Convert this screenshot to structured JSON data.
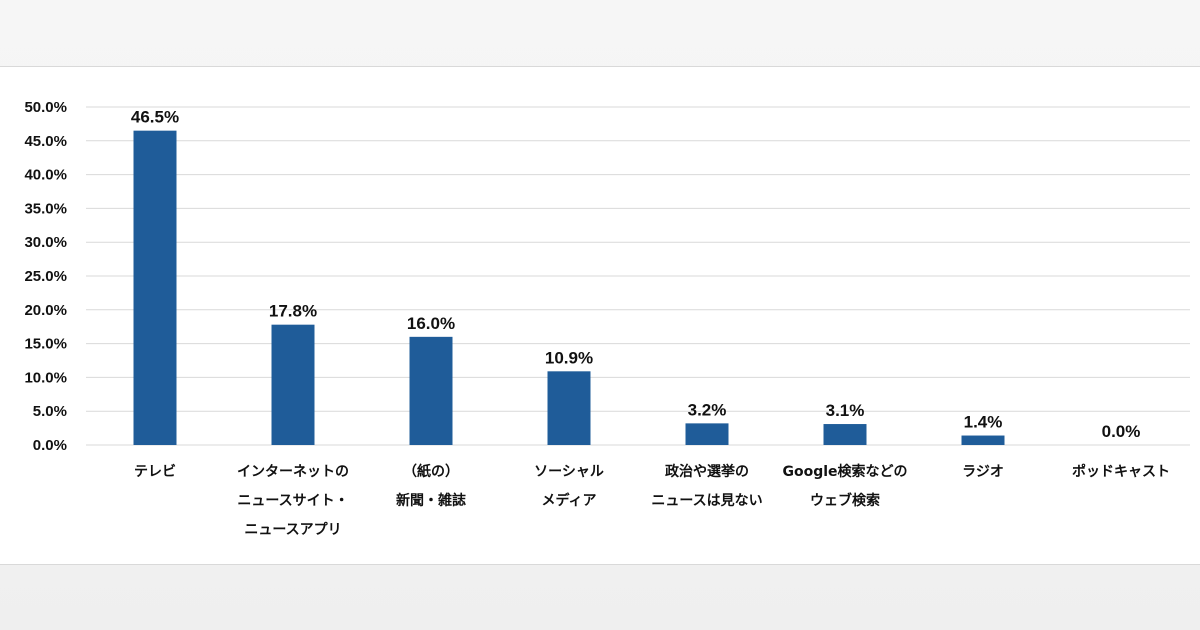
{
  "colors": {
    "bar": "#1f5c99",
    "grid": "#d9d9d9",
    "text": "#111111"
  },
  "chart_data": {
    "type": "bar",
    "title": "",
    "xlabel": "",
    "ylabel": "",
    "ylim": [
      0,
      50
    ],
    "y_ticks": [
      "0.0%",
      "5.0%",
      "10.0%",
      "15.0%",
      "20.0%",
      "25.0%",
      "30.0%",
      "35.0%",
      "40.0%",
      "45.0%",
      "50.0%"
    ],
    "grid": true,
    "categories": [
      [
        "テレビ"
      ],
      [
        "インターネットの",
        "ニュースサイト・",
        "ニュースアプリ"
      ],
      [
        "（紙の）",
        "新聞・雑誌"
      ],
      [
        "ソーシャル",
        "メディア"
      ],
      [
        "政治や選挙の",
        "ニュースは見ない"
      ],
      [
        "Google検索などの",
        "ウェブ検索"
      ],
      [
        "ラジオ"
      ],
      [
        "ポッドキャスト"
      ]
    ],
    "values": [
      46.5,
      17.8,
      16.0,
      10.9,
      3.2,
      3.1,
      1.4,
      0.0
    ],
    "data_labels": [
      "46.5%",
      "17.8%",
      "16.0%",
      "10.9%",
      "3.2%",
      "3.1%",
      "1.4%",
      "0.0%"
    ]
  }
}
